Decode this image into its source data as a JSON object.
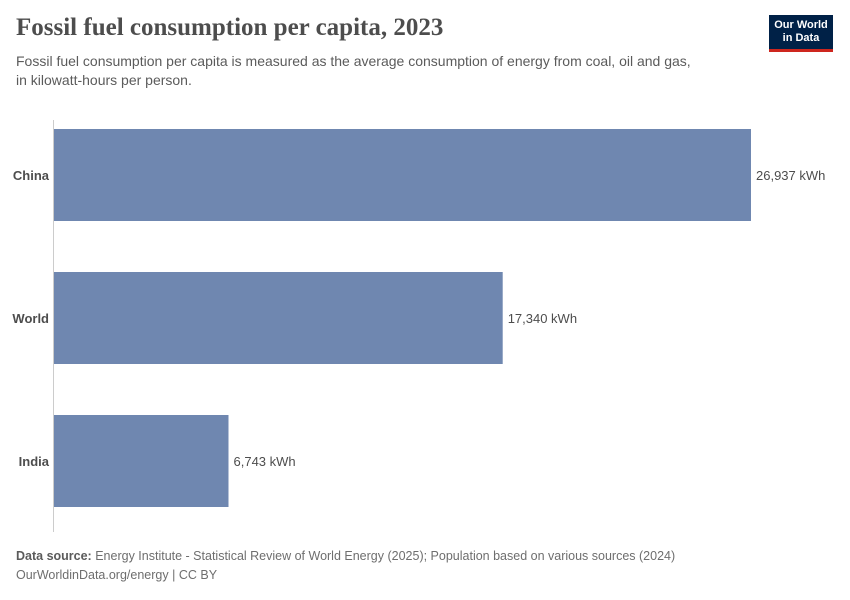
{
  "header": {
    "title": "Fossil fuel consumption per capita, 2023",
    "subtitle_lines": [
      "Fossil fuel consumption per capita is measured as the average consumption of energy from coal, oil and gas,",
      "in kilowatt-hours per person."
    ]
  },
  "logo": {
    "line1": "Our World",
    "line2": "in Data"
  },
  "chart_data": {
    "type": "bar",
    "orientation": "horizontal",
    "title": "Fossil fuel consumption per capita, 2023",
    "categories": [
      "China",
      "World",
      "India"
    ],
    "values": [
      26937,
      17340,
      6743
    ],
    "value_labels": [
      "26,937 kWh",
      "17,340 kWh",
      "6,743 kWh"
    ],
    "unit": "kWh",
    "xlim": [
      0,
      26937
    ],
    "grid": false,
    "bar_color": "#6f87b0"
  },
  "footer": {
    "source_label": "Data source:",
    "source_text": "Energy Institute - Statistical Review of World Energy (2025); Population based on various sources (2024)",
    "link": "OurWorldinData.org/energy",
    "separator": " | ",
    "license": "CC BY"
  }
}
